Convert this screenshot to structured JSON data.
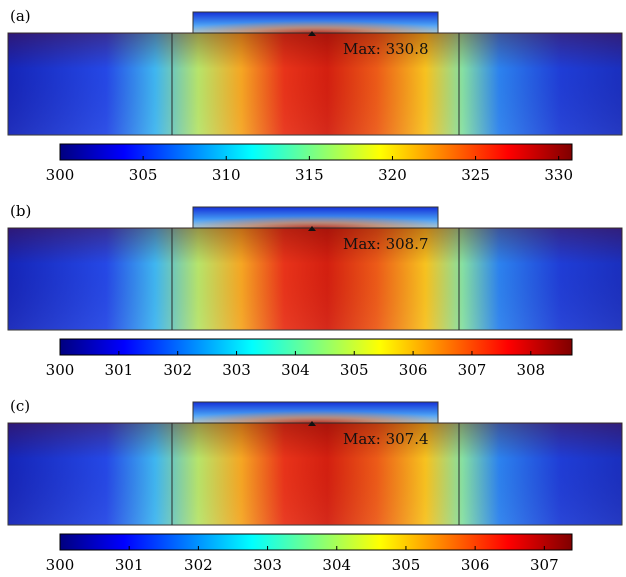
{
  "panels": [
    {
      "label": "(a)",
      "max_text": "Max: 330.8",
      "colorbar": {
        "min": 300,
        "max": 330.8,
        "ticks": [
          "300",
          "305",
          "310",
          "315",
          "320",
          "325",
          "330"
        ],
        "tick_values": [
          300,
          305,
          310,
          315,
          320,
          325,
          330
        ]
      }
    },
    {
      "label": "(b)",
      "max_text": "Max: 308.7",
      "colorbar": {
        "min": 300,
        "max": 308.7,
        "ticks": [
          "300",
          "301",
          "302",
          "303",
          "304",
          "305",
          "306",
          "307",
          "308"
        ],
        "tick_values": [
          300,
          301,
          302,
          303,
          304,
          305,
          306,
          307,
          308
        ]
      }
    },
    {
      "label": "(c)",
      "max_text": "Max: 307.4",
      "colorbar": {
        "min": 300,
        "max": 307.4,
        "ticks": [
          "300",
          "301",
          "302",
          "303",
          "304",
          "305",
          "306",
          "307"
        ],
        "tick_values": [
          300,
          301,
          302,
          303,
          304,
          305,
          306,
          307
        ]
      }
    }
  ],
  "colors": {
    "jet": [
      "#00007f",
      "#0000ff",
      "#007fff",
      "#00ffff",
      "#7fff7f",
      "#ffff00",
      "#ff7f00",
      "#ff0000",
      "#7f0000"
    ],
    "background_field": "#1f2fcf"
  }
}
